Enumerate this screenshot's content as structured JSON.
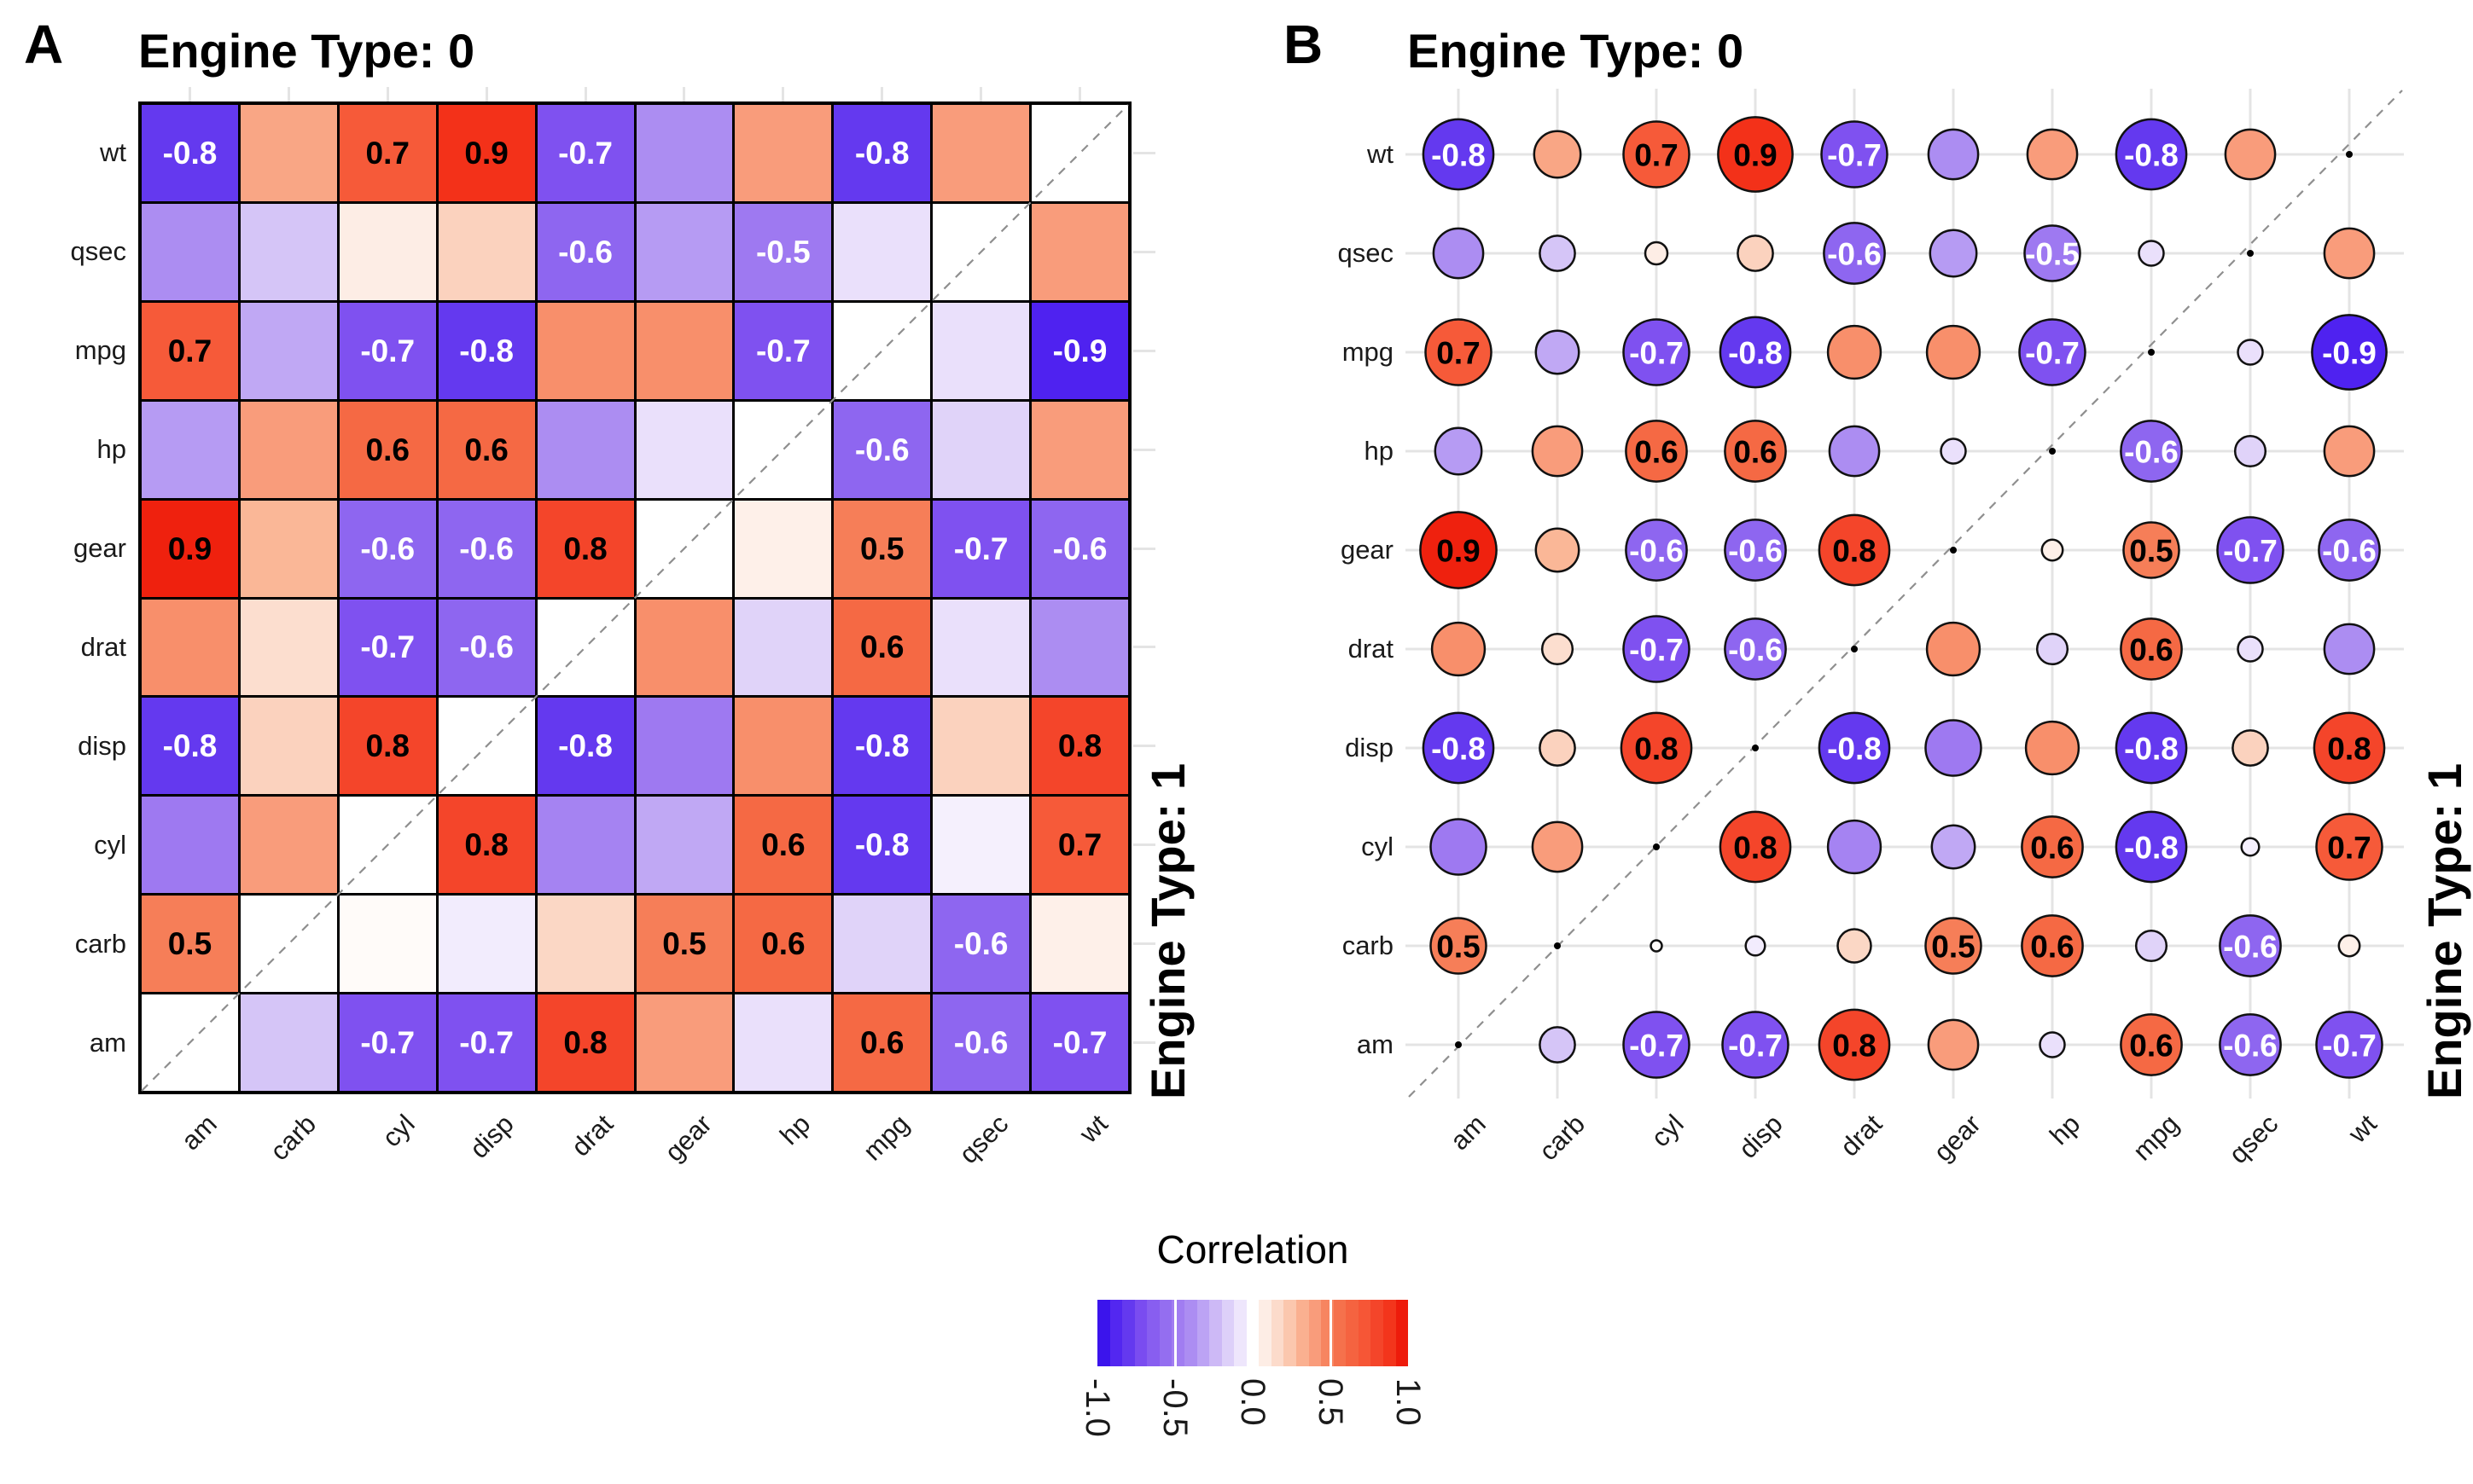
{
  "panels": {
    "a": {
      "corner_label": "A",
      "title": "Engine Type: 0",
      "right_title": "Engine Type: 1"
    },
    "b": {
      "corner_label": "B",
      "title": "Engine Type: 0",
      "right_title": "Engine Type: 1"
    }
  },
  "legend": {
    "title": "Correlation",
    "tick_labels": [
      "-1.0",
      "-0.5",
      "0.0",
      "0.5",
      "1.0"
    ],
    "tick_values": [
      -1,
      -0.5,
      0,
      0.5,
      1
    ]
  },
  "chart_data": {
    "type": "heatmap",
    "description": "Pairwise correlation matrices of mtcars variables split by engine type. Upper-left triangle = Engine Type: 0, lower-right triangle = Engine Type: 1, blank anti-diagonal with dashed line. Panel A renders correlations as colored squares, panel B as colored circles whose area is proportional to |r|. Numeric labels are printed only on selected (significant) cells.",
    "x_categories": [
      "am",
      "carb",
      "cyl",
      "disp",
      "drat",
      "gear",
      "hp",
      "mpg",
      "qsec",
      "wt"
    ],
    "y_categories_top_to_bottom": [
      "wt",
      "qsec",
      "mpg",
      "hp",
      "gear",
      "drat",
      "disp",
      "cyl",
      "carb",
      "am"
    ],
    "values": [
      [
        -0.8,
        0.35,
        0.7,
        0.9,
        -0.7,
        -0.4,
        0.4,
        -0.8,
        0.4,
        null
      ],
      [
        -0.4,
        -0.2,
        0.08,
        0.2,
        -0.6,
        -0.35,
        -0.5,
        -0.1,
        null,
        0.4
      ],
      [
        0.7,
        -0.3,
        -0.7,
        -0.8,
        0.45,
        0.45,
        -0.7,
        null,
        -0.1,
        -0.9
      ],
      [
        -0.35,
        0.4,
        0.6,
        0.6,
        -0.4,
        -0.1,
        null,
        -0.6,
        -0.15,
        0.4
      ],
      [
        0.94,
        0.3,
        -0.6,
        -0.6,
        0.8,
        null,
        0.07,
        0.5,
        -0.7,
        -0.6
      ],
      [
        0.45,
        0.15,
        -0.7,
        -0.6,
        null,
        0.45,
        -0.15,
        0.6,
        -0.1,
        -0.4
      ],
      [
        -0.8,
        0.2,
        0.8,
        null,
        -0.8,
        -0.5,
        0.45,
        -0.8,
        0.2,
        0.8
      ],
      [
        -0.5,
        0.4,
        null,
        0.8,
        -0.45,
        -0.3,
        0.6,
        -0.8,
        -0.05,
        0.7
      ],
      [
        0.5,
        null,
        0.02,
        -0.06,
        0.18,
        0.5,
        0.6,
        -0.15,
        -0.6,
        0.07
      ],
      [
        null,
        -0.2,
        -0.7,
        -0.7,
        0.8,
        0.4,
        -0.1,
        0.6,
        -0.6,
        -0.7
      ]
    ],
    "cell_labels": [
      [
        "-0.8",
        null,
        "0.7",
        "0.9",
        "-0.7",
        null,
        null,
        "-0.8",
        null,
        null
      ],
      [
        null,
        null,
        null,
        null,
        "-0.6",
        null,
        "-0.5",
        null,
        null,
        null
      ],
      [
        "0.7",
        null,
        "-0.7",
        "-0.8",
        null,
        null,
        "-0.7",
        null,
        null,
        "-0.9"
      ],
      [
        null,
        null,
        "0.6",
        "0.6",
        null,
        null,
        null,
        "-0.6",
        null,
        null
      ],
      [
        "0.9",
        null,
        "-0.6",
        "-0.6",
        "0.8",
        null,
        null,
        "0.5",
        "-0.7",
        "-0.6"
      ],
      [
        null,
        null,
        "-0.7",
        "-0.6",
        null,
        null,
        null,
        "0.6",
        null,
        null
      ],
      [
        "-0.8",
        null,
        "0.8",
        null,
        "-0.8",
        null,
        null,
        "-0.8",
        null,
        "0.8"
      ],
      [
        null,
        null,
        null,
        "0.8",
        null,
        null,
        "0.6",
        "-0.8",
        null,
        "0.7"
      ],
      [
        "0.5",
        null,
        null,
        null,
        null,
        "0.5",
        "0.6",
        null,
        "-0.6",
        null
      ],
      [
        null,
        null,
        "-0.7",
        "-0.7",
        "0.8",
        null,
        null,
        "0.6",
        "-0.6",
        "-0.7"
      ]
    ],
    "triangle_split": {
      "upper_left": "Engine Type: 0",
      "lower_right": "Engine Type: 1"
    },
    "panel_styles": [
      {
        "panel": "A",
        "glyph": "square"
      },
      {
        "panel": "B",
        "glyph": "circle",
        "size_encoding": "area proportional to |r|"
      }
    ],
    "axis_ranges": {
      "r_min": -1,
      "r_max": 1
    },
    "color_scale": {
      "low": "#2E0AEA",
      "mid": "#FFFFFF",
      "high": "#EC150A",
      "anchors": [
        [
          -1.0,
          "#2E0AEA"
        ],
        [
          -0.9,
          "#4F22F0"
        ],
        [
          -0.8,
          "#6439EF"
        ],
        [
          -0.7,
          "#7F51F0"
        ],
        [
          -0.6,
          "#8E66F0"
        ],
        [
          -0.5,
          "#9E79F1"
        ],
        [
          -0.4,
          "#AC8DF2"
        ],
        [
          -0.3,
          "#C0A8F4"
        ],
        [
          -0.2,
          "#D5C5F7"
        ],
        [
          -0.1,
          "#EAE0FB"
        ],
        [
          0.0,
          "#FFFFFF"
        ],
        [
          0.1,
          "#FDE9DF"
        ],
        [
          0.2,
          "#FBD2BE"
        ],
        [
          0.3,
          "#FAB797"
        ],
        [
          0.35,
          "#F9A685"
        ],
        [
          0.4,
          "#F99C7B"
        ],
        [
          0.45,
          "#F88F6B"
        ],
        [
          0.5,
          "#F67E58"
        ],
        [
          0.6,
          "#F56944"
        ],
        [
          0.7,
          "#F65A39"
        ],
        [
          0.8,
          "#F4452A"
        ],
        [
          0.9,
          "#F33119"
        ],
        [
          0.95,
          "#EE1D0B"
        ],
        [
          1.0,
          "#EC150A"
        ]
      ]
    }
  },
  "colors": {
    "grid_line": "#E4E4E4",
    "dashed_diagonal": "#8F8F8F",
    "cell_border": "#000000",
    "label_on_negative": "#FFFFFF",
    "label_on_positive": "#000000"
  }
}
